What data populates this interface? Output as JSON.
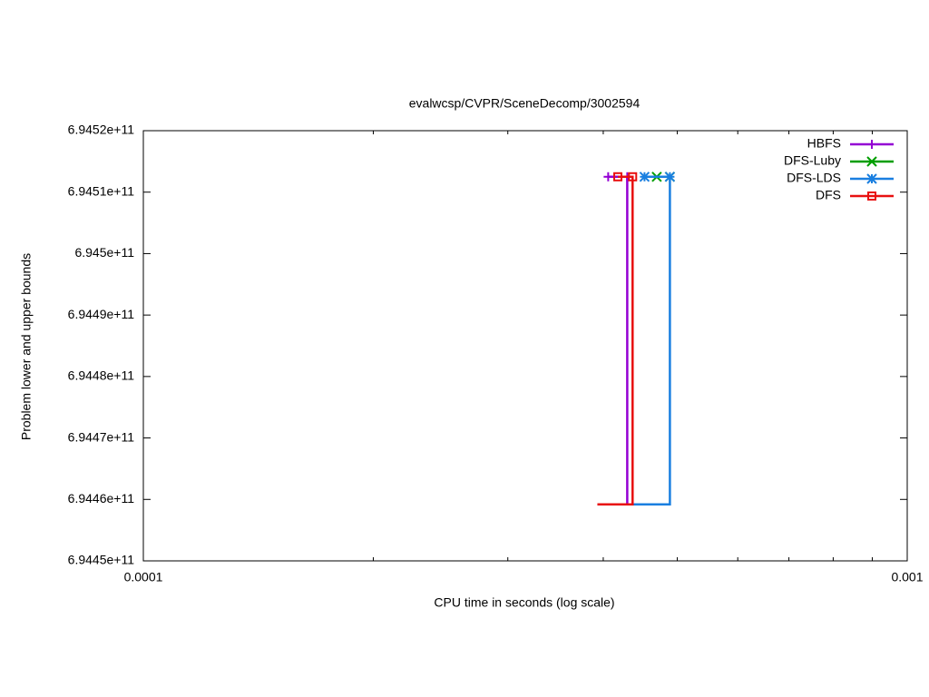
{
  "chart_data": {
    "type": "line",
    "title": "evalwcsp/CVPR/SceneDecomp/3002594",
    "x_label": "CPU time in seconds (log scale)",
    "y_label": "Problem lower and upper bounds",
    "xscale": "log",
    "xlim": [
      0.0001,
      0.001
    ],
    "xticks": [
      0.0001,
      0.001
    ],
    "xminorticks": [
      0.0002,
      0.0003,
      0.0004,
      0.0005,
      0.0006,
      0.0007,
      0.0008,
      0.0009
    ],
    "ylim": [
      694450000000,
      694520000000
    ],
    "yticks": [
      {
        "value": 694450000000,
        "label": "6.9445e+11"
      },
      {
        "value": 694460000000,
        "label": "6.9446e+11"
      },
      {
        "value": 694470000000,
        "label": "6.9447e+11"
      },
      {
        "value": 694480000000,
        "label": "6.9448e+11"
      },
      {
        "value": 694490000000,
        "label": "6.9449e+11"
      },
      {
        "value": 694500000000,
        "label": "6.945e+11"
      },
      {
        "value": 694510000000,
        "label": "6.9451e+11"
      },
      {
        "value": 694520000000,
        "label": "6.9452e+11"
      }
    ],
    "grid": false,
    "legend": "top-right",
    "series": [
      {
        "name": "HBFS",
        "color": "#9400d3",
        "marker": "plus",
        "x": [
          0.000393,
          0.00043,
          0.00043,
          0.000406
        ],
        "values": [
          694459200000,
          694459200000,
          694512500000,
          694512500000
        ]
      },
      {
        "name": "DFS-Luby",
        "color": "#009e00",
        "marker": "cross",
        "x": [
          0.00047,
          0.000489
        ],
        "values": [
          694512500000,
          694512500000
        ]
      },
      {
        "name": "DFS-LDS",
        "color": "#1a7fe0",
        "marker": "star",
        "x": [
          0.00043,
          0.000489,
          0.000489,
          0.000453
        ],
        "values": [
          694459200000,
          694459200000,
          694512500000,
          694512500000
        ]
      },
      {
        "name": "DFS",
        "color": "#e81010",
        "marker": "square",
        "x": [
          0.000393,
          0.000437,
          0.000437,
          0.000418
        ],
        "values": [
          694459200000,
          694459200000,
          694512500000,
          694512500000
        ]
      }
    ]
  }
}
